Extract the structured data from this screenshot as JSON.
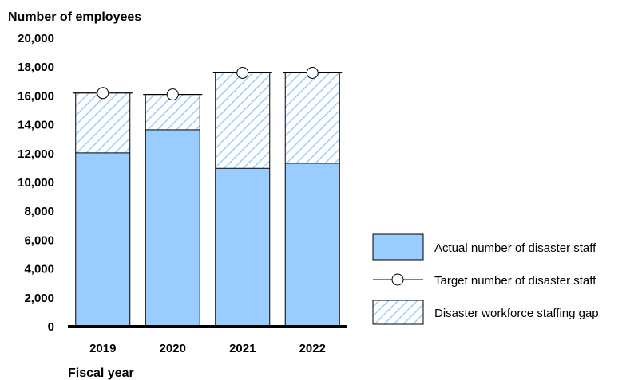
{
  "chart_data": {
    "type": "bar",
    "ylabel": "Number of employees",
    "xlabel": "Fiscal year",
    "ylim": [
      0,
      20000
    ],
    "y_ticks": [
      0,
      2000,
      4000,
      6000,
      8000,
      10000,
      12000,
      14000,
      16000,
      18000,
      20000
    ],
    "y_tick_labels": [
      "0",
      "2,000",
      "4,000",
      "6,000",
      "8,000",
      "10,000",
      "12,000",
      "14,000",
      "16,000",
      "18,000",
      "20,000"
    ],
    "categories": [
      "2019",
      "2020",
      "2021",
      "2022"
    ],
    "series": [
      {
        "name": "Actual number of disaster staff",
        "kind": "bar",
        "color": "#99ccff",
        "values": [
          12050,
          13650,
          10980,
          11330
        ]
      },
      {
        "name": "Target number of disaster staff",
        "kind": "marker",
        "values": [
          16200,
          16100,
          17600,
          17600
        ]
      },
      {
        "name": "Disaster workforce staffing gap",
        "kind": "hatched-stack",
        "color": "#99ccff",
        "values": [
          4150,
          2450,
          6620,
          6270
        ]
      }
    ],
    "legend": {
      "position": "right",
      "items": [
        "Actual number of disaster staff",
        "Target number of disaster staff",
        "Disaster workforce staffing gap"
      ]
    },
    "grid": false
  }
}
